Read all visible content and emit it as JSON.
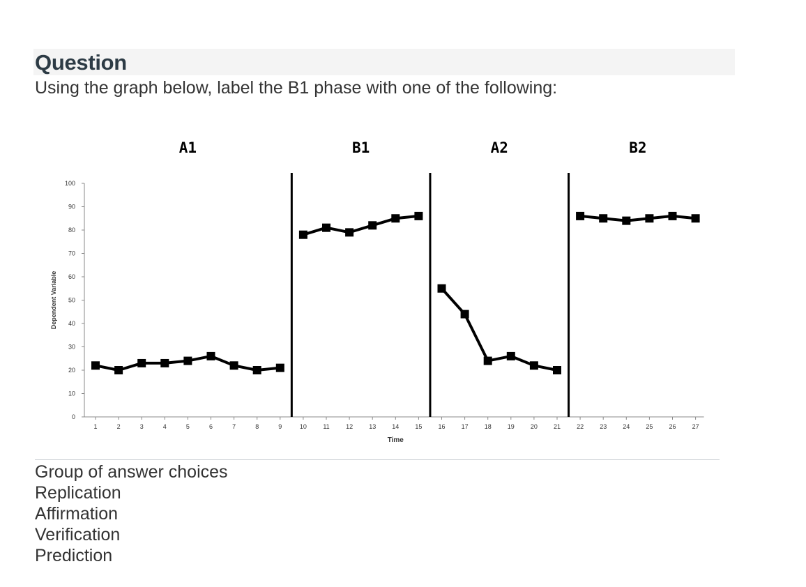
{
  "question": {
    "title": "Question",
    "prompt": "Using the graph below, label the B1 phase with one of the following:"
  },
  "answers": {
    "legend": "Group of answer choices",
    "choices": [
      "Replication",
      "Affirmation",
      "Verification",
      "Prediction"
    ]
  },
  "chart_data": {
    "type": "line",
    "title": "",
    "xlabel": "Time",
    "ylabel": "Dependent Variable",
    "ylim": [
      0,
      100
    ],
    "yticks": [
      0,
      10,
      20,
      30,
      40,
      50,
      60,
      70,
      80,
      90,
      100
    ],
    "xticks": [
      1,
      2,
      3,
      4,
      5,
      6,
      7,
      8,
      9,
      10,
      11,
      12,
      13,
      14,
      15,
      16,
      17,
      18,
      19,
      20,
      21,
      22,
      23,
      24,
      25,
      26,
      27
    ],
    "grid": false,
    "color": "#000000",
    "phase_boundaries": [
      9.5,
      15.5,
      21.5
    ],
    "phases": [
      {
        "label": "A1",
        "x": [
          1,
          2,
          3,
          4,
          5,
          6,
          7,
          8,
          9
        ],
        "values": [
          22,
          20,
          23,
          23,
          24,
          26,
          22,
          20,
          21
        ]
      },
      {
        "label": "B1",
        "x": [
          10,
          11,
          12,
          13,
          14,
          15
        ],
        "values": [
          78,
          81,
          79,
          82,
          85,
          86
        ]
      },
      {
        "label": "A2",
        "x": [
          16,
          17,
          18,
          19,
          20,
          21
        ],
        "values": [
          55,
          44,
          24,
          26,
          22,
          20
        ]
      },
      {
        "label": "B2",
        "x": [
          22,
          23,
          24,
          25,
          26,
          27
        ],
        "values": [
          86,
          85,
          84,
          85,
          86,
          85
        ]
      }
    ]
  }
}
